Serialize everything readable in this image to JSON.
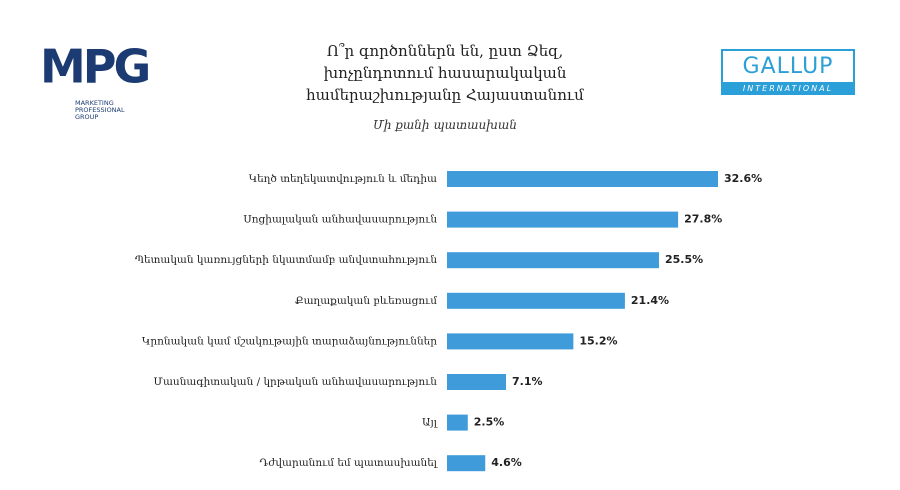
{
  "logos": {
    "mpg": {
      "mark": "MPG",
      "lines": [
        "MARKETING",
        "PROFESSIONAL",
        "GROUP"
      ]
    },
    "gallup": {
      "name": "GALLUP",
      "band": "INTERNATIONAL"
    }
  },
  "chart_data": {
    "type": "bar",
    "orientation": "horizontal",
    "title": "Ո՞ր գործոններն են, ըստ Ձեզ, խոչընդոտում հասարակական համերաշխությանը Հայաստանում",
    "subtitle": "Մի քանի պատասխան",
    "categories": [
      "Կեղծ տեղեկատվություն և մեդիա",
      "Սոցիալական անհավասարություն",
      "Պետական կառույցների նկատմամբ անվստահություն",
      "Քաղաքական բևեռացում",
      "Կրոնական կամ մշակութային տարաձայնություններ",
      "Մասնագիտական / կրթական անհավասարություն",
      "Այլ",
      "Դժվարանում եմ պատասխանել"
    ],
    "values": [
      32.6,
      27.8,
      25.5,
      21.4,
      15.2,
      7.1,
      2.5,
      4.6
    ],
    "value_labels": [
      "32.6%",
      "27.8%",
      "25.5%",
      "21.4%",
      "15.2%",
      "7.1%",
      "2.5%",
      "4.6%"
    ],
    "color": "#3f9bd9"
  }
}
